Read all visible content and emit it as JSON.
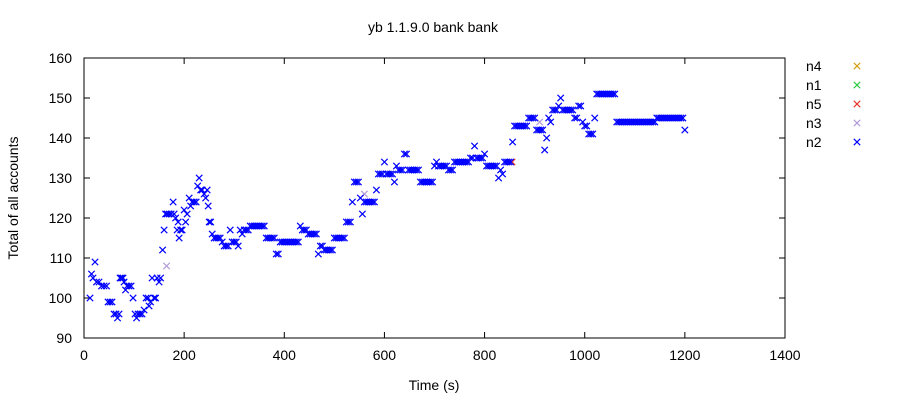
{
  "chart_data": {
    "type": "scatter",
    "title": "yb 1.1.9.0 bank bank",
    "xlabel": "Time (s)",
    "ylabel": "Total of all accounts",
    "xlim": [
      0,
      1400
    ],
    "ylim": [
      90,
      160
    ],
    "xticks": [
      0,
      200,
      400,
      600,
      800,
      1000,
      1200,
      1400
    ],
    "yticks": [
      90,
      100,
      110,
      120,
      130,
      140,
      150,
      160
    ],
    "grid": false,
    "legend_position": "right",
    "marker": "x",
    "series": [
      {
        "name": "n4",
        "color": "#d4a017",
        "points": []
      },
      {
        "name": "n1",
        "color": "#2ecc40",
        "points": []
      },
      {
        "name": "n5",
        "color": "#e8372b",
        "points": [
          [
            855,
            134
          ]
        ]
      },
      {
        "name": "n3",
        "color": "#b19cd9",
        "points": [
          [
            165,
            108
          ],
          [
            560,
            126
          ],
          [
            910,
            144
          ]
        ]
      },
      {
        "name": "n2",
        "color": "#0000ff",
        "points": [
          [
            12,
            100
          ],
          [
            15,
            106
          ],
          [
            18,
            105
          ],
          [
            22,
            109
          ],
          [
            25,
            104
          ],
          [
            30,
            104
          ],
          [
            35,
            103
          ],
          [
            40,
            103
          ],
          [
            45,
            103
          ],
          [
            48,
            99
          ],
          [
            52,
            99
          ],
          [
            56,
            99
          ],
          [
            60,
            96
          ],
          [
            64,
            96
          ],
          [
            67,
            95
          ],
          [
            70,
            96
          ],
          [
            72,
            105
          ],
          [
            75,
            105
          ],
          [
            78,
            105
          ],
          [
            80,
            104
          ],
          [
            83,
            102
          ],
          [
            86,
            103
          ],
          [
            90,
            103
          ],
          [
            94,
            103
          ],
          [
            98,
            100
          ],
          [
            102,
            96
          ],
          [
            105,
            95
          ],
          [
            108,
            96
          ],
          [
            112,
            96
          ],
          [
            116,
            96
          ],
          [
            120,
            97
          ],
          [
            124,
            100
          ],
          [
            128,
            100
          ],
          [
            130,
            98
          ],
          [
            133,
            99
          ],
          [
            136,
            105
          ],
          [
            140,
            100
          ],
          [
            143,
            100
          ],
          [
            146,
            105
          ],
          [
            150,
            104
          ],
          [
            153,
            105
          ],
          [
            157,
            112
          ],
          [
            160,
            117
          ],
          [
            163,
            121
          ],
          [
            166,
            121
          ],
          [
            170,
            121
          ],
          [
            174,
            121
          ],
          [
            178,
            124
          ],
          [
            180,
            121
          ],
          [
            183,
            120
          ],
          [
            186,
            117
          ],
          [
            188,
            119
          ],
          [
            190,
            115
          ],
          [
            193,
            117
          ],
          [
            196,
            117
          ],
          [
            200,
            122
          ],
          [
            203,
            119
          ],
          [
            206,
            121
          ],
          [
            210,
            125
          ],
          [
            213,
            123
          ],
          [
            216,
            124
          ],
          [
            220,
            124
          ],
          [
            224,
            124
          ],
          [
            227,
            128
          ],
          [
            230,
            130
          ],
          [
            233,
            127
          ],
          [
            236,
            127
          ],
          [
            240,
            126
          ],
          [
            243,
            125
          ],
          [
            246,
            127
          ],
          [
            248,
            123
          ],
          [
            250,
            119
          ],
          [
            253,
            119
          ],
          [
            256,
            116
          ],
          [
            260,
            115
          ],
          [
            264,
            115
          ],
          [
            268,
            115
          ],
          [
            272,
            115
          ],
          [
            276,
            114
          ],
          [
            280,
            113
          ],
          [
            284,
            113
          ],
          [
            288,
            113
          ],
          [
            292,
            117
          ],
          [
            296,
            114
          ],
          [
            300,
            114
          ],
          [
            304,
            114
          ],
          [
            308,
            113
          ],
          [
            312,
            117
          ],
          [
            316,
            116
          ],
          [
            320,
            117
          ],
          [
            324,
            117
          ],
          [
            328,
            117
          ],
          [
            332,
            118
          ],
          [
            336,
            118
          ],
          [
            340,
            118
          ],
          [
            344,
            118
          ],
          [
            348,
            118
          ],
          [
            352,
            118
          ],
          [
            356,
            118
          ],
          [
            360,
            118
          ],
          [
            364,
            115
          ],
          [
            368,
            115
          ],
          [
            372,
            115
          ],
          [
            376,
            115
          ],
          [
            380,
            115
          ],
          [
            384,
            111
          ],
          [
            388,
            111
          ],
          [
            392,
            114
          ],
          [
            396,
            114
          ],
          [
            400,
            114
          ],
          [
            404,
            114
          ],
          [
            408,
            114
          ],
          [
            412,
            114
          ],
          [
            416,
            114
          ],
          [
            420,
            114
          ],
          [
            424,
            114
          ],
          [
            428,
            114
          ],
          [
            432,
            118
          ],
          [
            436,
            117
          ],
          [
            440,
            117
          ],
          [
            444,
            117
          ],
          [
            448,
            116
          ],
          [
            452,
            116
          ],
          [
            456,
            116
          ],
          [
            460,
            116
          ],
          [
            464,
            116
          ],
          [
            468,
            111
          ],
          [
            472,
            113
          ],
          [
            476,
            113
          ],
          [
            480,
            112
          ],
          [
            484,
            112
          ],
          [
            488,
            112
          ],
          [
            492,
            112
          ],
          [
            496,
            112
          ],
          [
            500,
            115
          ],
          [
            504,
            115
          ],
          [
            508,
            115
          ],
          [
            512,
            115
          ],
          [
            516,
            115
          ],
          [
            520,
            115
          ],
          [
            524,
            119
          ],
          [
            528,
            119
          ],
          [
            532,
            119
          ],
          [
            536,
            124
          ],
          [
            540,
            129
          ],
          [
            544,
            129
          ],
          [
            548,
            129
          ],
          [
            552,
            125
          ],
          [
            556,
            121
          ],
          [
            560,
            124
          ],
          [
            564,
            124
          ],
          [
            568,
            124
          ],
          [
            572,
            124
          ],
          [
            576,
            124
          ],
          [
            580,
            124
          ],
          [
            584,
            127
          ],
          [
            588,
            131
          ],
          [
            592,
            131
          ],
          [
            596,
            131
          ],
          [
            600,
            134
          ],
          [
            604,
            131
          ],
          [
            608,
            131
          ],
          [
            612,
            131
          ],
          [
            616,
            131
          ],
          [
            620,
            129
          ],
          [
            624,
            133
          ],
          [
            628,
            132
          ],
          [
            632,
            132
          ],
          [
            636,
            132
          ],
          [
            640,
            136
          ],
          [
            644,
            136
          ],
          [
            648,
            132
          ],
          [
            652,
            132
          ],
          [
            656,
            132
          ],
          [
            660,
            132
          ],
          [
            664,
            132
          ],
          [
            668,
            132
          ],
          [
            672,
            129
          ],
          [
            676,
            129
          ],
          [
            680,
            129
          ],
          [
            684,
            129
          ],
          [
            688,
            129
          ],
          [
            692,
            129
          ],
          [
            696,
            129
          ],
          [
            700,
            133
          ],
          [
            704,
            134
          ],
          [
            708,
            133
          ],
          [
            712,
            133
          ],
          [
            716,
            133
          ],
          [
            720,
            133
          ],
          [
            724,
            133
          ],
          [
            728,
            132
          ],
          [
            732,
            132
          ],
          [
            736,
            132
          ],
          [
            740,
            134
          ],
          [
            744,
            134
          ],
          [
            748,
            134
          ],
          [
            752,
            134
          ],
          [
            756,
            134
          ],
          [
            760,
            134
          ],
          [
            764,
            134
          ],
          [
            768,
            134
          ],
          [
            772,
            135
          ],
          [
            776,
            135
          ],
          [
            780,
            138
          ],
          [
            784,
            135
          ],
          [
            788,
            135
          ],
          [
            792,
            135
          ],
          [
            796,
            135
          ],
          [
            800,
            136
          ],
          [
            804,
            133
          ],
          [
            808,
            133
          ],
          [
            812,
            133
          ],
          [
            816,
            133
          ],
          [
            820,
            133
          ],
          [
            824,
            133
          ],
          [
            828,
            130
          ],
          [
            832,
            132
          ],
          [
            836,
            131
          ],
          [
            840,
            134
          ],
          [
            844,
            134
          ],
          [
            848,
            134
          ],
          [
            852,
            134
          ],
          [
            856,
            139
          ],
          [
            860,
            143
          ],
          [
            864,
            143
          ],
          [
            868,
            143
          ],
          [
            872,
            143
          ],
          [
            876,
            143
          ],
          [
            880,
            143
          ],
          [
            884,
            143
          ],
          [
            888,
            145
          ],
          [
            892,
            145
          ],
          [
            896,
            145
          ],
          [
            900,
            145
          ],
          [
            904,
            142
          ],
          [
            908,
            142
          ],
          [
            912,
            142
          ],
          [
            916,
            142
          ],
          [
            920,
            137
          ],
          [
            924,
            140
          ],
          [
            928,
            145
          ],
          [
            932,
            144
          ],
          [
            936,
            147
          ],
          [
            940,
            147
          ],
          [
            944,
            147
          ],
          [
            948,
            148
          ],
          [
            952,
            150
          ],
          [
            956,
            147
          ],
          [
            960,
            147
          ],
          [
            964,
            147
          ],
          [
            968,
            147
          ],
          [
            972,
            147
          ],
          [
            976,
            147
          ],
          [
            980,
            145
          ],
          [
            984,
            145
          ],
          [
            988,
            148
          ],
          [
            992,
            148
          ],
          [
            996,
            144
          ],
          [
            1000,
            143
          ],
          [
            1004,
            143
          ],
          [
            1008,
            141
          ],
          [
            1012,
            141
          ],
          [
            1016,
            141
          ],
          [
            1020,
            145
          ],
          [
            1024,
            151
          ],
          [
            1028,
            151
          ],
          [
            1032,
            151
          ],
          [
            1036,
            151
          ],
          [
            1040,
            151
          ],
          [
            1044,
            151
          ],
          [
            1048,
            151
          ],
          [
            1052,
            151
          ],
          [
            1056,
            151
          ],
          [
            1060,
            151
          ],
          [
            1064,
            144
          ],
          [
            1068,
            144
          ],
          [
            1072,
            144
          ],
          [
            1076,
            144
          ],
          [
            1080,
            144
          ],
          [
            1084,
            144
          ],
          [
            1088,
            144
          ],
          [
            1092,
            144
          ],
          [
            1096,
            144
          ],
          [
            1100,
            144
          ],
          [
            1104,
            144
          ],
          [
            1108,
            144
          ],
          [
            1112,
            144
          ],
          [
            1116,
            144
          ],
          [
            1120,
            144
          ],
          [
            1124,
            144
          ],
          [
            1128,
            144
          ],
          [
            1132,
            144
          ],
          [
            1136,
            144
          ],
          [
            1140,
            144
          ],
          [
            1144,
            145
          ],
          [
            1148,
            145
          ],
          [
            1152,
            145
          ],
          [
            1156,
            145
          ],
          [
            1160,
            145
          ],
          [
            1164,
            145
          ],
          [
            1168,
            145
          ],
          [
            1172,
            145
          ],
          [
            1176,
            145
          ],
          [
            1180,
            145
          ],
          [
            1184,
            145
          ],
          [
            1188,
            145
          ],
          [
            1192,
            145
          ],
          [
            1196,
            145
          ],
          [
            1200,
            142
          ]
        ]
      }
    ]
  }
}
